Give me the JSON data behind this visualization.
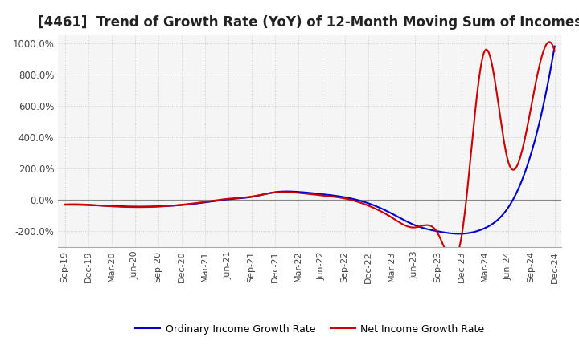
{
  "title": "[4461]  Trend of Growth Rate (YoY) of 12-Month Moving Sum of Incomes",
  "title_fontsize": 12,
  "ylim": [
    -300,
    1050
  ],
  "yticks": [
    -200,
    0,
    200,
    400,
    600,
    800,
    1000
  ],
  "ytick_labels": [
    "-200.0%",
    "0.0%",
    "200.0%",
    "400.0%",
    "600.0%",
    "800.0%",
    "1000.0%"
  ],
  "background_color": "#ffffff",
  "plot_bg_color": "#f5f5f5",
  "grid_color": "#cccccc",
  "ordinary_color": "#0000cc",
  "net_color": "#cc0000",
  "legend_labels": [
    "Ordinary Income Growth Rate",
    "Net Income Growth Rate"
  ],
  "x_labels": [
    "Sep-19",
    "Dec-19",
    "Mar-20",
    "Jun-20",
    "Sep-20",
    "Dec-20",
    "Mar-21",
    "Jun-21",
    "Sep-21",
    "Dec-21",
    "Mar-22",
    "Jun-22",
    "Sep-22",
    "Dec-22",
    "Mar-23",
    "Jun-23",
    "Sep-23",
    "Dec-23",
    "Mar-24",
    "Jun-24",
    "Sep-24",
    "Dec-24"
  ],
  "ordinary_income_growth": [
    -30,
    -32,
    -38,
    -42,
    -40,
    -32,
    -15,
    5,
    20,
    50,
    52,
    38,
    18,
    -20,
    -85,
    -160,
    -200,
    -215,
    -180,
    -50,
    300,
    980
  ],
  "net_income_growth": [
    -28,
    -30,
    -40,
    -45,
    -42,
    -30,
    -12,
    8,
    22,
    48,
    46,
    30,
    10,
    -35,
    -110,
    -175,
    -215,
    -240,
    950,
    250,
    600,
    950
  ]
}
